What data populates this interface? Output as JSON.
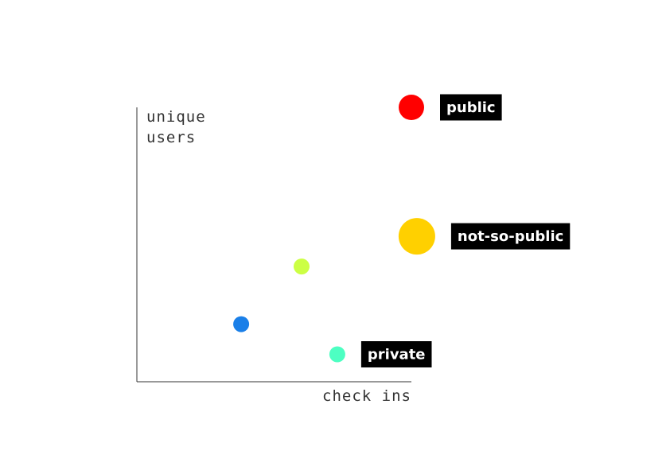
{
  "chart_data": {
    "type": "scatter",
    "title": "",
    "xlabel": "check ins",
    "ylabel_lines": [
      "unique",
      "users"
    ],
    "xlim": [
      0,
      100
    ],
    "ylim": [
      0,
      100
    ],
    "grid": false,
    "points": [
      {
        "name": "public",
        "x": 100,
        "y": 100,
        "size": 16,
        "color": "#ff0000",
        "label": "public"
      },
      {
        "name": "not-so-public",
        "x": 102,
        "y": 53,
        "size": 23,
        "color": "#ffd000",
        "label": "not-so-public"
      },
      {
        "name": "light-green",
        "x": 60,
        "y": 42,
        "size": 10,
        "color": "#ccff44",
        "label": ""
      },
      {
        "name": "blue",
        "x": 38,
        "y": 21,
        "size": 10,
        "color": "#1a7fe8",
        "label": ""
      },
      {
        "name": "private",
        "x": 73,
        "y": 10,
        "size": 10,
        "color": "#4dffc2",
        "label": "private"
      }
    ]
  }
}
